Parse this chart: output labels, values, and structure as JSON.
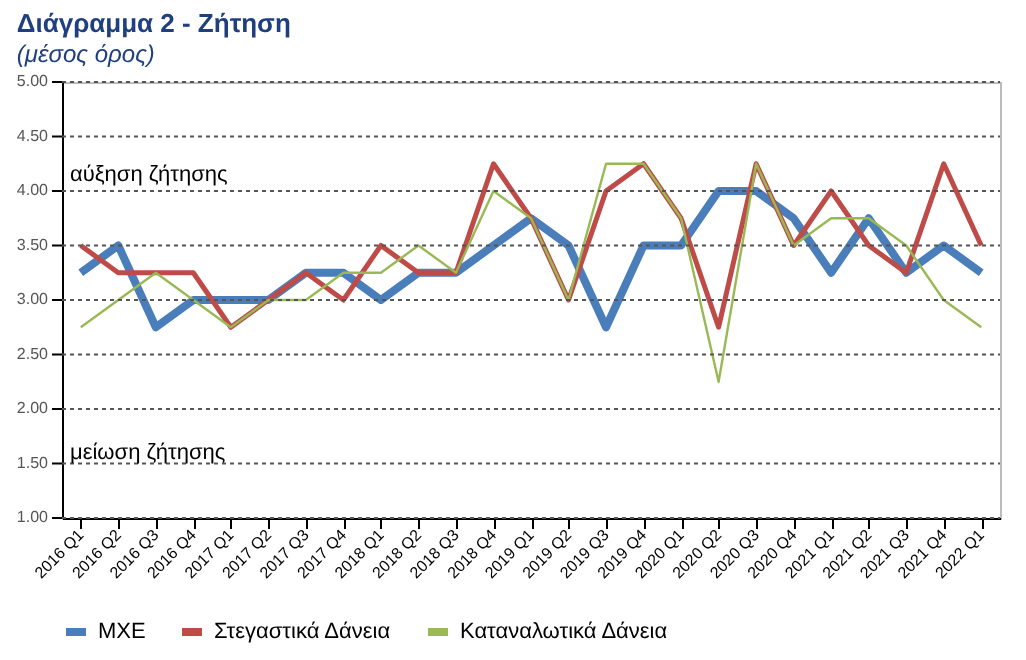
{
  "chart_data": {
    "type": "line",
    "title": "Διάγραμμα 2 - Ζήτηση",
    "subtitle": "(μέσος όρος)",
    "categories": [
      "2016 Q1",
      "2016 Q2",
      "2016 Q3",
      "2016 Q4",
      "2017 Q1",
      "2017 Q2",
      "2017 Q3",
      "2017 Q4",
      "2018 Q1",
      "2018 Q2",
      "2018 Q3",
      "2018 Q4",
      "2019 Q1",
      "2019 Q2",
      "2019 Q3",
      "2019 Q4",
      "2020 Q1",
      "2020 Q2",
      "2020 Q3",
      "2020 Q4",
      "2021 Q1",
      "2021 Q2",
      "2021 Q3",
      "2021 Q4",
      "2022 Q1"
    ],
    "series": [
      {
        "name": "ΜΧΕ",
        "color": "#4a7ebb",
        "values": [
          3.25,
          3.5,
          2.75,
          3.0,
          3.0,
          3.0,
          3.25,
          3.25,
          3.0,
          3.25,
          3.25,
          3.5,
          3.75,
          3.5,
          2.75,
          3.5,
          3.5,
          4.0,
          4.0,
          3.75,
          3.25,
          3.75,
          3.25,
          3.5,
          3.25
        ]
      },
      {
        "name": "Στεγαστικά Δάνεια",
        "color": "#be4b48",
        "values": [
          3.5,
          3.25,
          3.25,
          3.25,
          2.75,
          3.0,
          3.25,
          3.0,
          3.5,
          3.25,
          3.25,
          4.25,
          3.75,
          3.0,
          4.0,
          4.25,
          3.75,
          2.75,
          4.25,
          3.5,
          4.0,
          3.5,
          3.25,
          4.25,
          3.5
        ]
      },
      {
        "name": "Καταναλωτικά Δάνεια",
        "color": "#98b954",
        "values": [
          2.75,
          3.0,
          3.25,
          3.0,
          2.75,
          3.0,
          3.0,
          3.25,
          3.25,
          3.5,
          3.25,
          4.0,
          3.75,
          3.0,
          4.25,
          4.25,
          3.75,
          2.25,
          4.25,
          3.5,
          3.75,
          3.75,
          3.5,
          3.0,
          2.75
        ]
      }
    ],
    "ylim": [
      1.0,
      5.0
    ],
    "yticks": [
      {
        "value": 1.0,
        "label": "1.00"
      },
      {
        "value": 1.5,
        "label": "1.50"
      },
      {
        "value": 2.0,
        "label": "2.00"
      },
      {
        "value": 2.5,
        "label": "2.50"
      },
      {
        "value": 3.0,
        "label": "3.00"
      },
      {
        "value": 3.5,
        "label": "3.50"
      },
      {
        "value": 4.0,
        "label": "4.00"
      },
      {
        "value": 4.5,
        "label": "4.50"
      },
      {
        "value": 5.0,
        "label": "5.00"
      }
    ],
    "annotations": [
      "αύξηση ζήτησης",
      "μείωση ζήτησης"
    ],
    "grid": "y",
    "legend": "bottom",
    "marker": "none",
    "line_style": "solid"
  }
}
